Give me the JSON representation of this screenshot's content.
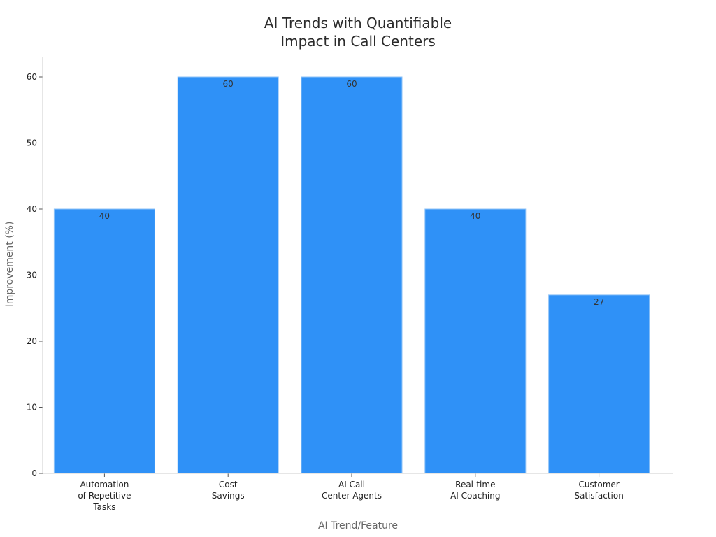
{
  "chart_data": {
    "type": "bar",
    "title_lines": [
      "AI Trends with Quantifiable",
      "Impact in Call Centers"
    ],
    "categories": [
      [
        "Automation",
        "of Repetitive",
        "Tasks"
      ],
      [
        "Cost",
        "Savings"
      ],
      [
        "AI Call",
        "Center Agents"
      ],
      [
        "Real-time",
        "AI Coaching"
      ],
      [
        "Customer",
        "Satisfaction"
      ]
    ],
    "values": [
      40,
      60,
      60,
      40,
      27
    ],
    "data_labels": [
      "40",
      "60",
      "60",
      "40",
      "27"
    ],
    "xlabel": "AI Trend/Feature",
    "ylabel": "Improvement (%)",
    "ylim": [
      0,
      63
    ],
    "yticks": [
      0,
      10,
      20,
      30,
      40,
      50,
      60
    ],
    "ytick_labels": [
      "0",
      "10",
      "20",
      "30",
      "40",
      "50",
      "60"
    ],
    "grid": false,
    "bar_color": "#2f91f7",
    "bar_edge_color": "#8ec2f7"
  }
}
